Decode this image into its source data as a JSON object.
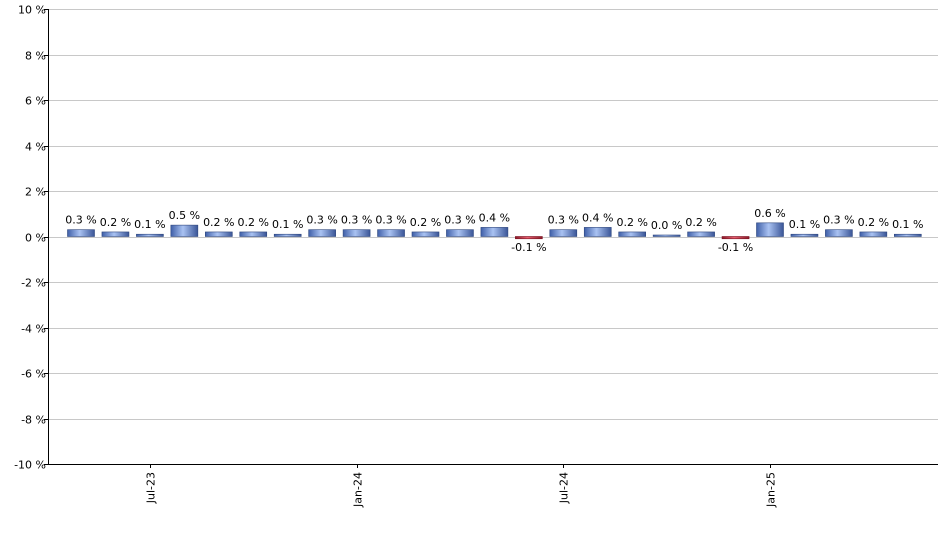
{
  "chart_data": {
    "type": "bar",
    "title": "",
    "xlabel": "",
    "ylabel": "",
    "ylim": [
      -10,
      10
    ],
    "y_ticks": [
      {
        "value": 10,
        "label": "10 %"
      },
      {
        "value": 8,
        "label": "8 %"
      },
      {
        "value": 6,
        "label": "6 %"
      },
      {
        "value": 4,
        "label": "4 %"
      },
      {
        "value": 2,
        "label": "2 %"
      },
      {
        "value": 0,
        "label": "0 %"
      },
      {
        "value": -2,
        "label": "-2 %"
      },
      {
        "value": -4,
        "label": "-4 %"
      },
      {
        "value": -6,
        "label": "-6 %"
      },
      {
        "value": -8,
        "label": "-8 %"
      },
      {
        "value": -10,
        "label": "-10 %"
      }
    ],
    "x_tick_labels": [
      {
        "index": 2,
        "label": "Jul-23"
      },
      {
        "index": 8,
        "label": "Jan-24"
      },
      {
        "index": 14,
        "label": "Jul-24"
      },
      {
        "index": 20,
        "label": "Jan-25"
      }
    ],
    "grid": true,
    "values": [
      0.3,
      0.2,
      0.1,
      0.5,
      0.2,
      0.2,
      0.1,
      0.3,
      0.3,
      0.3,
      0.2,
      0.3,
      0.4,
      -0.1,
      0.3,
      0.4,
      0.2,
      0.0,
      0.2,
      -0.1,
      0.6,
      0.1,
      0.3,
      0.2,
      0.1
    ],
    "value_labels": [
      "0.3 %",
      "0.2 %",
      "0.1 %",
      "0.5 %",
      "0.2 %",
      "0.2 %",
      "0.1 %",
      "0.3 %",
      "0.3 %",
      "0.3 %",
      "0.2 %",
      "0.3 %",
      "0.4 %",
      "-0.1 %",
      "0.3 %",
      "0.4 %",
      "0.2 %",
      "0.0 %",
      "0.2 %",
      "-0.1 %",
      "0.6 %",
      "0.1 %",
      "0.3 %",
      "0.2 %",
      "0.1 %"
    ],
    "colors": {
      "positive": "#6f8fd6",
      "negative": "#cc3344",
      "grid": "#c8c8c8",
      "axis": "#000000"
    }
  }
}
